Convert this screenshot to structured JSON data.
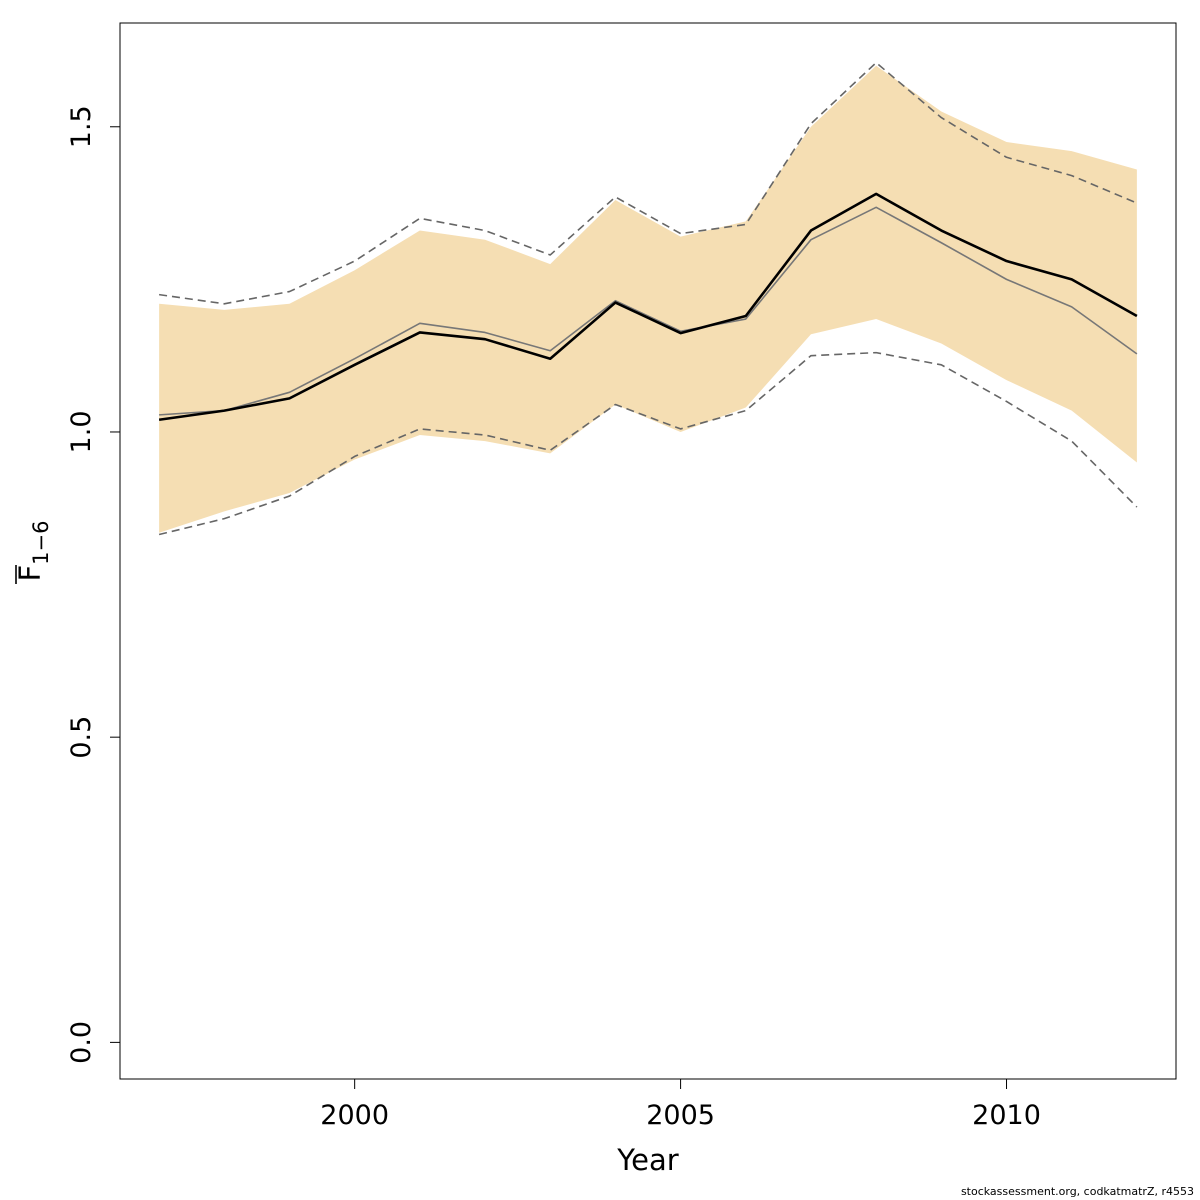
{
  "chart_data": {
    "type": "area",
    "xlabel": "Year",
    "ylabel": {
      "base": "F",
      "subscript": "1−6"
    },
    "xlim": [
      1996.4,
      2012.6
    ],
    "ylim": [
      -0.06,
      1.67
    ],
    "x_ticks": [
      2000,
      2005,
      2010
    ],
    "y_ticks": [
      0.0,
      0.5,
      1.0,
      1.5
    ],
    "y_tick_labels": [
      "0.0",
      "0.5",
      "1.0",
      "1.5"
    ],
    "grid": false,
    "legend": "none",
    "x": [
      1997,
      1998,
      1999,
      2000,
      2001,
      2002,
      2003,
      2004,
      2005,
      2006,
      2007,
      2008,
      2009,
      2010,
      2011,
      2012
    ],
    "series": [
      {
        "values": [
          1.02,
          1.035,
          1.055,
          1.11,
          1.163,
          1.152,
          1.12,
          1.212,
          1.162,
          1.19,
          1.33,
          1.39,
          1.33,
          1.28,
          1.25,
          1.19
        ],
        "color": "#000000",
        "style": "solid-thick"
      },
      {
        "values": [
          1.028,
          1.035,
          1.065,
          1.12,
          1.178,
          1.163,
          1.133,
          1.215,
          1.165,
          1.185,
          1.315,
          1.368,
          1.31,
          1.25,
          1.205,
          1.128
        ],
        "color": "#777777",
        "style": "solid-thin"
      },
      {
        "values": [
          1.225,
          1.21,
          1.23,
          1.28,
          1.35,
          1.33,
          1.29,
          1.385,
          1.325,
          1.34,
          1.505,
          1.605,
          1.515,
          1.45,
          1.42,
          1.375
        ],
        "color": "#666666",
        "style": "dashed"
      },
      {
        "values": [
          0.832,
          0.858,
          0.895,
          0.96,
          1.005,
          0.995,
          0.97,
          1.045,
          1.005,
          1.035,
          1.125,
          1.13,
          1.11,
          1.05,
          0.985,
          0.877
        ],
        "color": "#666666",
        "style": "dashed"
      }
    ],
    "band": {
      "upper": [
        1.21,
        1.2,
        1.21,
        1.265,
        1.33,
        1.315,
        1.275,
        1.38,
        1.32,
        1.345,
        1.5,
        1.6,
        1.525,
        1.475,
        1.46,
        1.43
      ],
      "lower": [
        0.835,
        0.87,
        0.9,
        0.955,
        0.995,
        0.985,
        0.965,
        1.045,
        1.0,
        1.04,
        1.16,
        1.185,
        1.145,
        1.085,
        1.035,
        0.95
      ],
      "color": "#f5deb3"
    }
  },
  "footer": "stockassessment.org, codkatmatrZ, r4553"
}
